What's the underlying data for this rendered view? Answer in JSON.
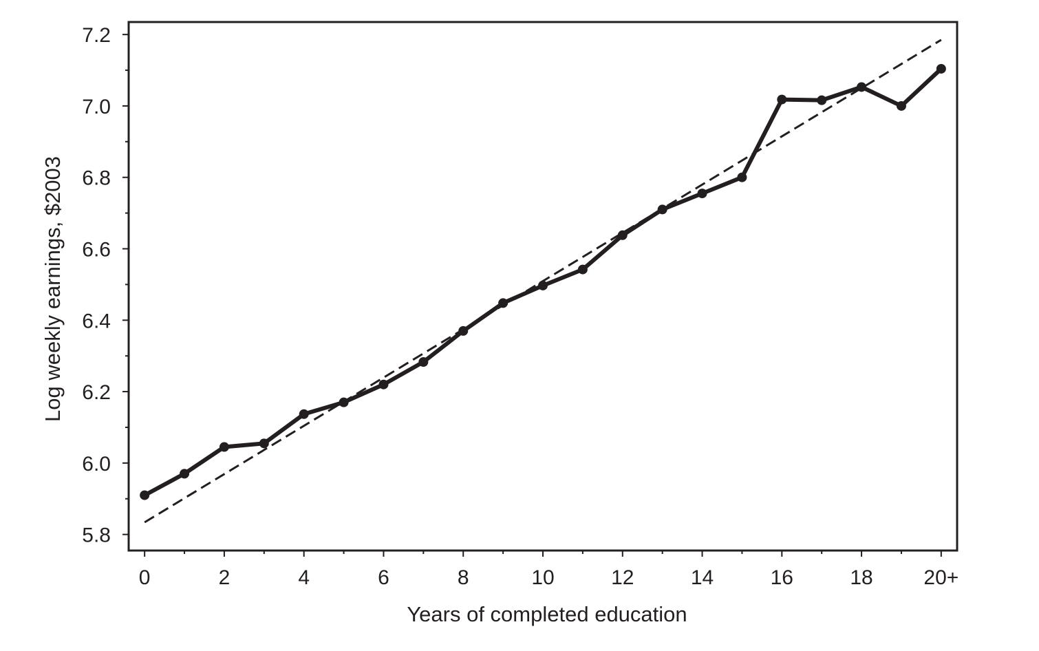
{
  "chart_data": {
    "type": "line",
    "xlabel": "Years of completed education",
    "ylabel": "Log weekly earnings, $2003",
    "xlim": [
      -0.4,
      20.4
    ],
    "ylim": [
      5.755,
      7.235
    ],
    "x_ticks": [
      0,
      2,
      4,
      6,
      8,
      10,
      12,
      14,
      16,
      18,
      20
    ],
    "x_tick_labels": [
      "0",
      "2",
      "4",
      "6",
      "8",
      "10",
      "12",
      "14",
      "16",
      "18",
      "20+"
    ],
    "y_ticks": [
      5.8,
      6.0,
      6.2,
      6.4,
      6.6,
      6.8,
      7.0,
      7.2
    ],
    "y_tick_labels": [
      "5.8",
      "6.0",
      "6.2",
      "6.4",
      "6.6",
      "6.8",
      "7.0",
      "7.2"
    ],
    "grid": false,
    "series": [
      {
        "style": "solid-with-markers",
        "color": "#231f20",
        "x": [
          0,
          1,
          2,
          3,
          4,
          5,
          6,
          7,
          8,
          9,
          10,
          11,
          12,
          13,
          14,
          15,
          16,
          17,
          18,
          19,
          20
        ],
        "y": [
          5.91,
          5.97,
          6.045,
          6.055,
          6.137,
          6.17,
          6.22,
          6.283,
          6.37,
          6.448,
          6.497,
          6.542,
          6.638,
          6.71,
          6.755,
          6.8,
          7.018,
          7.016,
          7.053,
          7.0,
          7.104
        ]
      },
      {
        "style": "dashed",
        "color": "#231f20",
        "x": [
          0,
          20
        ],
        "y": [
          5.834,
          7.185
        ]
      }
    ]
  }
}
